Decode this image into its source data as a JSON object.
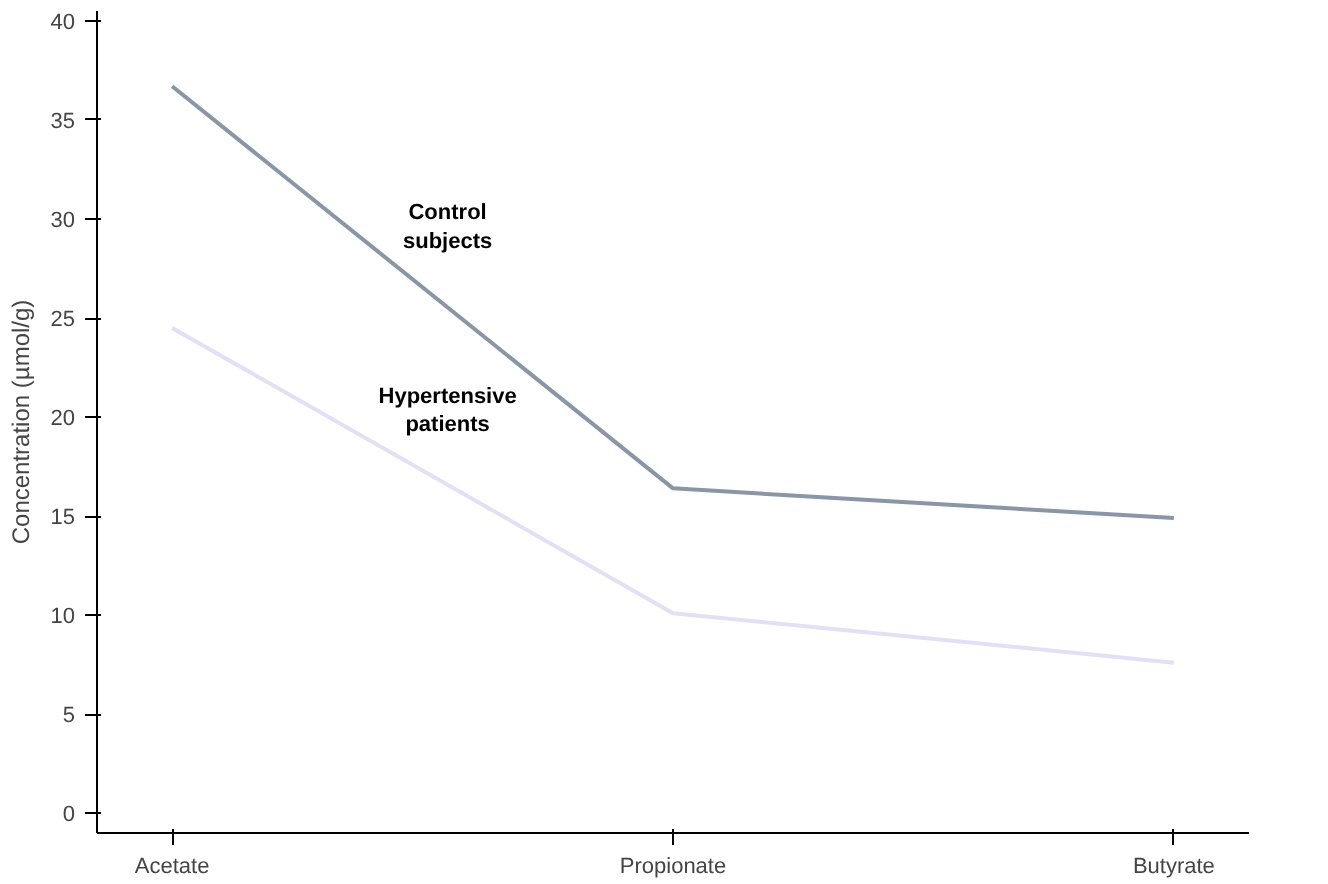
{
  "chart_data": {
    "type": "line",
    "ylabel": "Concentration (µmol/g)",
    "categories": [
      "Acetate",
      "Propionate",
      "Butyrate"
    ],
    "series": [
      {
        "name": "Control\nsubjects",
        "color": "#8a95a5",
        "values": [
          36.7,
          16.4,
          14.9
        ]
      },
      {
        "name": "Hypertensive\npatients",
        "color": "#e2e0f4",
        "values": [
          24.5,
          10.1,
          7.6
        ]
      }
    ],
    "ylim": [
      -1,
      40.5
    ],
    "yticks": [
      0,
      5,
      10,
      15,
      20,
      25,
      30,
      35,
      40
    ],
    "grid": false,
    "marker": "none",
    "line_style": "solid"
  }
}
